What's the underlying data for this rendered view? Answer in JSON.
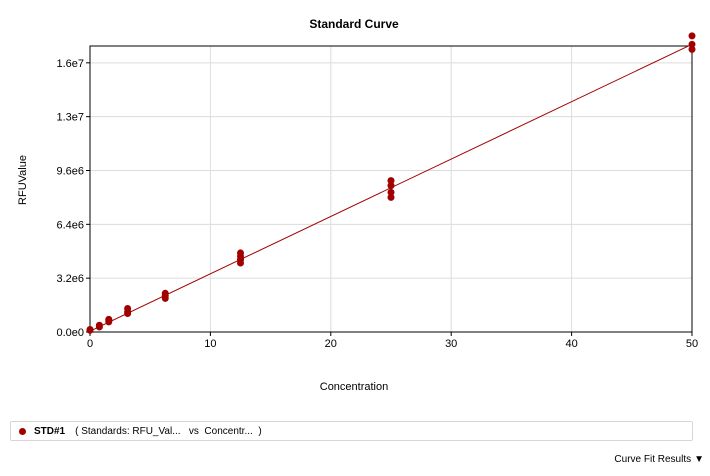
{
  "colors": {
    "series": "#a00000",
    "grid": "#dcdcdc",
    "axis": "#000000"
  },
  "legend": {
    "name": "STD#1",
    "description": "( Standards: RFU_Val...   vs  Concentr...  )",
    "icon": "circle-marker-icon"
  },
  "curve_fit": {
    "label": "Curve Fit Results",
    "icon": "triangle-down-icon",
    "arrow": "▼"
  },
  "chart_data": {
    "type": "scatter",
    "title": "Standard Curve",
    "xlabel": "Concentration",
    "ylabel": "RFUValue",
    "xlim": [
      0,
      50
    ],
    "ylim": [
      0,
      17000000
    ],
    "xticks": [
      0,
      10,
      20,
      30,
      40,
      50
    ],
    "xtick_labels": [
      "0",
      "10",
      "20",
      "30",
      "40",
      "50"
    ],
    "yticks": [
      0,
      3200000,
      6400000,
      9600000,
      12800000,
      16000000
    ],
    "ytick_labels": [
      "0.0e0",
      "3.2e6",
      "6.4e6",
      "9.6e6",
      "1.3e7",
      "1.6e7"
    ],
    "grid": true,
    "series": [
      {
        "name": "STD#1",
        "points": [
          [
            0,
            100000
          ],
          [
            0,
            150000
          ],
          [
            0.78,
            300000
          ],
          [
            0.78,
            400000
          ],
          [
            1.56,
            600000
          ],
          [
            1.56,
            700000
          ],
          [
            1.56,
            750000
          ],
          [
            3.125,
            1100000
          ],
          [
            3.125,
            1200000
          ],
          [
            3.125,
            1400000
          ],
          [
            6.25,
            2000000
          ],
          [
            6.25,
            2150000
          ],
          [
            6.25,
            2300000
          ],
          [
            12.5,
            4100000
          ],
          [
            12.5,
            4300000
          ],
          [
            12.5,
            4500000
          ],
          [
            12.5,
            4700000
          ],
          [
            25,
            8000000
          ],
          [
            25,
            8300000
          ],
          [
            25,
            8700000
          ],
          [
            25,
            9000000
          ],
          [
            50,
            16800000
          ],
          [
            50,
            17100000
          ],
          [
            50,
            17600000
          ]
        ],
        "fit_line": [
          [
            0,
            50000
          ],
          [
            50,
            17100000
          ]
        ]
      }
    ]
  }
}
